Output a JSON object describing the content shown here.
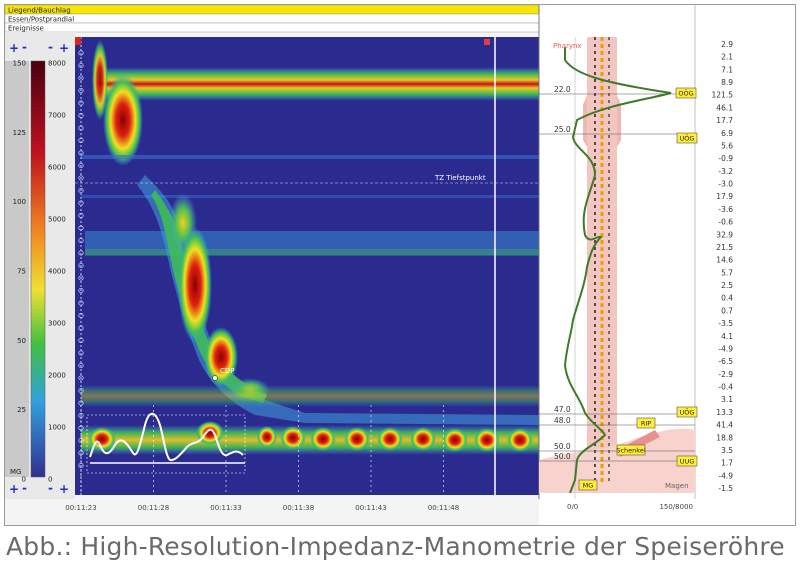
{
  "header_rows": [
    "Liegend/Bauchlag",
    "Essen/Postprandial",
    "Ereignisse"
  ],
  "caption": "Abb.: High-Resolution-Impedanz-Manometrie der Speiseröhre",
  "chart_data": {
    "type": "heatmap",
    "title": "",
    "xlabel": "",
    "ylabel": "",
    "time_ticks": [
      "00:11:23",
      "00:11:28",
      "00:11:33",
      "00:11:38",
      "00:11:43",
      "00:11:48"
    ],
    "colorbar_left": {
      "unit": "MG",
      "ticks": [
        "150",
        "125",
        "100",
        "75",
        "50",
        "25",
        "0"
      ]
    },
    "colorbar_right": {
      "ticks": [
        "8000",
        "7000",
        "6000",
        "5000",
        "4000",
        "3000",
        "2000",
        "1000",
        "0"
      ]
    },
    "pressure_scale": {
      "range_label": "0/0",
      "max_label": "150/8000"
    },
    "annotations": [
      "TZ Tiefstpunkt",
      "CDP"
    ],
    "depth_labels": [
      "22.0",
      "25.0",
      "47.0",
      "48.0",
      "50.0",
      "50.0"
    ],
    "zone_labels": [
      "Pharynx",
      "Magen"
    ],
    "markers": [
      "OÖG",
      "UÖG",
      "UÖG",
      "RIP",
      "Schenkel",
      "UUG",
      "MG"
    ],
    "sensor_values": [
      "2.9",
      "2.1",
      "7.1",
      "8.9",
      "121.5",
      "46.1",
      "17.7",
      "6.9",
      "5.6",
      "-0.9",
      "-3.2",
      "-3.0",
      "17.9",
      "-3.6",
      "-0.6",
      "32.9",
      "21.5",
      "14.6",
      "5.7",
      "2.5",
      "0.4",
      "0.7",
      "-3.5",
      "4.1",
      "-4.9",
      "-6.5",
      "-2.9",
      "-0.4",
      "3.1",
      "13.3",
      "41.4",
      "18.8",
      "3.5",
      "1.7",
      "-4.9",
      "-1.5"
    ],
    "colors": {
      "background": "#2b2a8e",
      "low": "#3fa0e0",
      "mid": "#f0e020",
      "high": "#e02010",
      "peak": "#7a0000",
      "ring": "#f6c9c4",
      "sensor_dash": "#e8a000"
    }
  }
}
